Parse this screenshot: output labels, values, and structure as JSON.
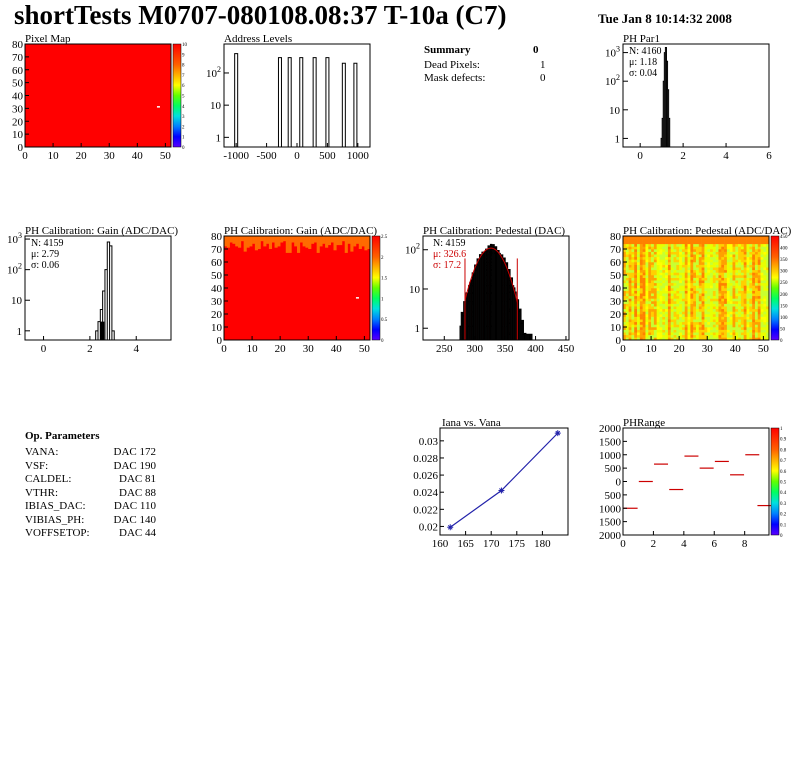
{
  "header": {
    "title": "shortTests M0707-080108.08:37 T-10a (C7)",
    "datetime": "Tue Jan  8 10:14:32 2008"
  },
  "summary": {
    "title": "Summary",
    "count": "0",
    "rows": [
      {
        "label": "Dead Pixels:",
        "value": "1"
      },
      {
        "label": "Mask defects:",
        "value": "0"
      }
    ]
  },
  "op_parameters": {
    "title": "Op. Parameters",
    "rows": [
      {
        "label": "VANA:",
        "value": "172 DAC"
      },
      {
        "label": "VSF:",
        "value": "190 DAC"
      },
      {
        "label": "CALDEL:",
        "value": "81 DAC"
      },
      {
        "label": "VTHR:",
        "value": "88 DAC"
      },
      {
        "label": "IBIAS_DAC:",
        "value": "110 DAC"
      },
      {
        "label": "VIBIAS_PH:",
        "value": "140 DAC"
      },
      {
        "label": "VOFFSETOP:",
        "value": "44 DAC"
      }
    ]
  },
  "colors": {
    "map_red": "#ff0000",
    "map_orange": "#ff6a00",
    "hist_red": "#cc0000",
    "line_blue": "#2222aa"
  },
  "chart_data": [
    {
      "id": "pixel-map",
      "type": "heatmap",
      "title": "Pixel Map",
      "xlim": [
        0,
        52
      ],
      "ylim": [
        0,
        80
      ],
      "xticks": [
        "0",
        "10",
        "20",
        "30",
        "40",
        "50"
      ],
      "yticks": [
        "0",
        "10",
        "20",
        "30",
        "40",
        "50",
        "60",
        "70",
        "80"
      ],
      "colorbar_ticks": [
        "0",
        "1",
        "2",
        "3",
        "4",
        "5",
        "6",
        "7",
        "8",
        "9",
        "10"
      ],
      "uniform_value": 10,
      "dead_pixels": [
        {
          "x": 47,
          "y": 31
        }
      ]
    },
    {
      "id": "address-levels",
      "type": "bar",
      "title": "Address Levels",
      "log_y": true,
      "xlim": [
        -1200,
        1200
      ],
      "xticks": [
        "-1000",
        "-500",
        "0",
        "500",
        "1000"
      ],
      "yticks": [
        "1",
        "10",
        "10^2"
      ],
      "peaks": [
        {
          "x": -1000,
          "y": 400
        },
        {
          "x": -280,
          "y": 300
        },
        {
          "x": -120,
          "y": 300
        },
        {
          "x": 70,
          "y": 300
        },
        {
          "x": 290,
          "y": 300
        },
        {
          "x": 500,
          "y": 300
        },
        {
          "x": 770,
          "y": 200
        },
        {
          "x": 960,
          "y": 200
        }
      ]
    },
    {
      "id": "ph-par1",
      "type": "bar",
      "title": "PH Par1",
      "log_y": true,
      "xlim": [
        -0.8,
        6
      ],
      "xticks": [
        "0",
        "2",
        "4",
        "6"
      ],
      "yticks": [
        "1",
        "10",
        "10^2",
        "10^3"
      ],
      "stats": [
        "N: 4160",
        "μ: 1.18",
        "σ: 0.04"
      ],
      "bins": [
        [
          1.0,
          1
        ],
        [
          1.05,
          5
        ],
        [
          1.1,
          100
        ],
        [
          1.15,
          1000
        ],
        [
          1.2,
          1500
        ],
        [
          1.25,
          500
        ],
        [
          1.3,
          50
        ],
        [
          1.35,
          5
        ]
      ]
    },
    {
      "id": "ph-gain-hist",
      "type": "bar",
      "title": "PH Calibration: Gain (ADC/DAC)",
      "log_y": true,
      "xlim": [
        -0.8,
        5.5
      ],
      "xticks": [
        "0",
        "2",
        "4"
      ],
      "yticks": [
        "1",
        "10",
        "10^2",
        "10^3"
      ],
      "stats": [
        "N: 4159",
        "μ: 2.79",
        "σ: 0.06"
      ],
      "bins": [
        [
          2.3,
          1
        ],
        [
          2.4,
          2
        ],
        [
          2.5,
          5
        ],
        [
          2.6,
          20
        ],
        [
          2.7,
          100
        ],
        [
          2.8,
          800
        ],
        [
          2.9,
          600
        ],
        [
          3.0,
          1
        ]
      ]
    },
    {
      "id": "ph-gain-map",
      "type": "heatmap",
      "title": "PH Calibration: Gain (ADC/DAC)",
      "xlim": [
        0,
        52
      ],
      "ylim": [
        0,
        80
      ],
      "xticks": [
        "0",
        "10",
        "20",
        "30",
        "40",
        "50"
      ],
      "yticks": [
        "0",
        "10",
        "20",
        "30",
        "40",
        "50",
        "60",
        "70",
        "80"
      ],
      "colorbar_ticks": [
        "0",
        "0.5",
        "1",
        "1.5",
        "2",
        "2.5"
      ]
    },
    {
      "id": "ph-pedestal-hist",
      "type": "bar",
      "title": "PH Calibration: Pedestal (DAC)",
      "log_y": true,
      "xlim": [
        215,
        455
      ],
      "xticks": [
        "250",
        "300",
        "350",
        "400",
        "450"
      ],
      "yticks": [
        "1",
        "10",
        "10^2"
      ],
      "stats": [
        "N: 4159",
        "μ: 326.6",
        "σ: 17.2"
      ],
      "fit_range": [
        284,
        370
      ],
      "mean": 326.6,
      "sigma": 17.2,
      "peak": 110
    },
    {
      "id": "ph-pedestal-map",
      "type": "heatmap",
      "title": "PH Calibration: Pedestal (ADC/DAC)",
      "xlim": [
        0,
        52
      ],
      "ylim": [
        0,
        80
      ],
      "xticks": [
        "0",
        "10",
        "20",
        "30",
        "40",
        "50"
      ],
      "yticks": [
        "0",
        "10",
        "20",
        "30",
        "40",
        "50",
        "60",
        "70",
        "80"
      ],
      "colorbar_ticks": [
        "0",
        "50",
        "100",
        "150",
        "200",
        "250",
        "300",
        "350",
        "400",
        "450"
      ]
    },
    {
      "id": "iana-vana",
      "type": "line",
      "title": "Iana vs. Vana",
      "xlim": [
        160,
        185
      ],
      "ylim": [
        0.019,
        0.0315
      ],
      "xticks": [
        "160",
        "165",
        "170",
        "175",
        "180"
      ],
      "yticks": [
        "0.02",
        "0.022",
        "0.024",
        "0.026",
        "0.028",
        "0.03"
      ],
      "x": [
        162,
        172,
        183
      ],
      "y": [
        0.0199,
        0.0242,
        0.0309
      ]
    },
    {
      "id": "ph-range",
      "type": "scatter",
      "title": "PHRange",
      "xlim": [
        0,
        9.6
      ],
      "ylim": [
        -2000,
        2000
      ],
      "xticks": [
        "0",
        "2",
        "4",
        "6",
        "8"
      ],
      "yticks": [
        "2000",
        "1500",
        "1000",
        "500",
        "0",
        "500",
        "1000",
        "1500",
        "2000"
      ],
      "colorbar_ticks": [
        "0",
        "0.1",
        "0.2",
        "0.3",
        "0.4",
        "0.5",
        "0.6",
        "0.7",
        "0.8",
        "0.9",
        "1"
      ],
      "points": [
        [
          0.5,
          -1000
        ],
        [
          1.5,
          0
        ],
        [
          2.5,
          650
        ],
        [
          3.5,
          -300
        ],
        [
          4.5,
          950
        ],
        [
          5.5,
          500
        ],
        [
          6.5,
          750
        ],
        [
          7.5,
          250
        ],
        [
          8.5,
          1000
        ],
        [
          9.3,
          -900
        ]
      ]
    }
  ]
}
